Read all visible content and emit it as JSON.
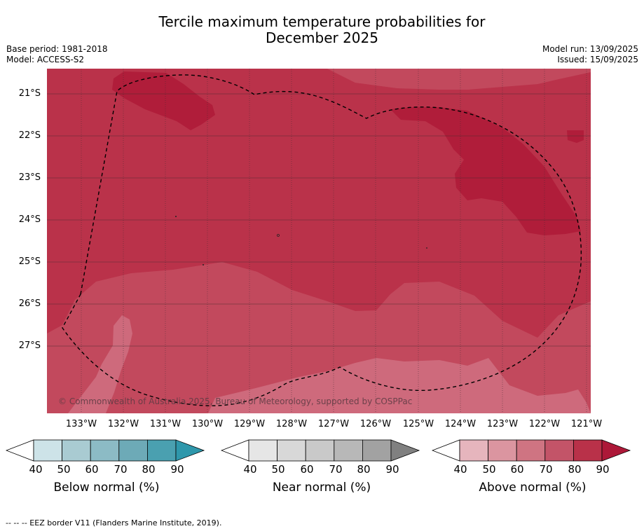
{
  "title": {
    "line1": "Tercile maximum temperature probabilities for",
    "line2": "December 2025"
  },
  "meta": {
    "base_period": "Base period: 1981-2018",
    "model": "Model: ACCESS-S2",
    "model_run": "Model run: 13/09/2025",
    "issued": "Issued: 15/09/2025"
  },
  "map": {
    "lat_labels": [
      "21°S",
      "22°S",
      "23°S",
      "24°S",
      "25°S",
      "26°S",
      "27°S"
    ],
    "lon_labels": [
      "133°W",
      "132°W",
      "131°W",
      "130°W",
      "129°W",
      "128°W",
      "127°W",
      "126°W",
      "125°W",
      "124°W",
      "123°W",
      "122°W",
      "121°W"
    ],
    "copyright": "© Commonwealth of Australia 2025, Bureau of Meteorology, supported by COSPPac",
    "category_shown": "Above normal",
    "probability_bands_shown": [
      "60-70",
      "70-80",
      "80-90",
      ">90"
    ],
    "colors": {
      "above_60_70": "#ce6a7c",
      "above_70_80": "#c2495d",
      "above_80_90": "#ba324a",
      "above_90": "#b01d3a",
      "grid": "#3a2a2e",
      "eez_border": "#000000"
    }
  },
  "colorbars": [
    {
      "label": "Below normal (%)",
      "ticks": [
        "40",
        "50",
        "60",
        "70",
        "80",
        "90"
      ],
      "colors": [
        "#ffffff",
        "#cde3e8",
        "#a9cbd2",
        "#8cbbc5",
        "#6daab7",
        "#4aa0b0",
        "#2e97ab"
      ]
    },
    {
      "label": "Near normal (%)",
      "ticks": [
        "40",
        "50",
        "60",
        "70",
        "80",
        "90"
      ],
      "colors": [
        "#ffffff",
        "#e6e6e6",
        "#d8d8d8",
        "#c9c9c9",
        "#b8b8b8",
        "#a2a2a2",
        "#808080"
      ]
    },
    {
      "label": "Above normal (%)",
      "ticks": [
        "40",
        "50",
        "60",
        "70",
        "80",
        "90"
      ],
      "colors": [
        "#ffffff",
        "#e6b5bd",
        "#db95a0",
        "#cf7482",
        "#c35468",
        "#b93149",
        "#ad1838"
      ]
    }
  ],
  "footer": "--  --  -- EEZ border V11 (Flanders Marine Institute, 2019)."
}
